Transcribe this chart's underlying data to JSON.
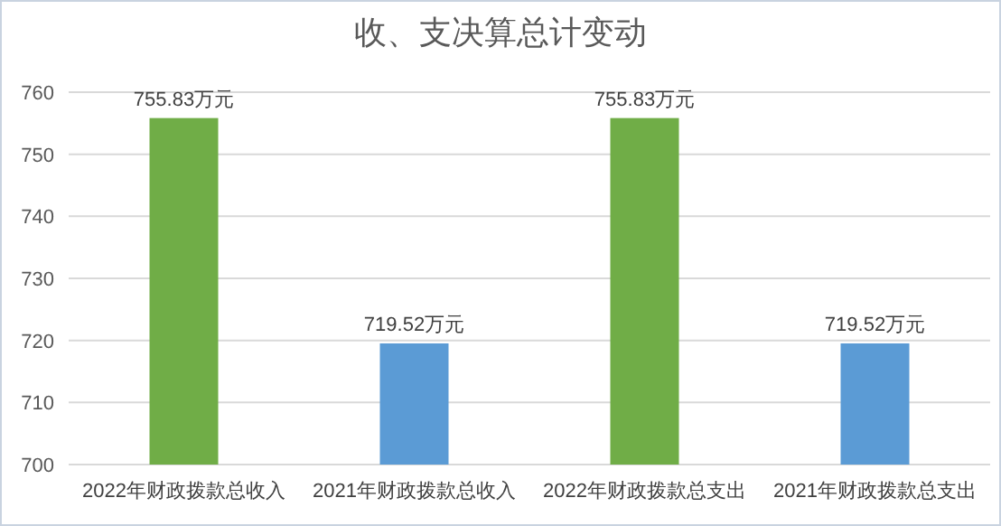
{
  "chart_data": {
    "type": "bar",
    "title": "收、支决算总计变动",
    "categories": [
      "2022年财政拨款总收入",
      "2021年财政拨款总收入",
      "2022年财政拨款总支出",
      "2021年财政拨款总支出"
    ],
    "values": [
      755.83,
      719.52,
      755.83,
      719.52
    ],
    "colors": [
      "#70ad47",
      "#5b9bd5",
      "#70ad47",
      "#5b9bd5"
    ],
    "value_labels": [
      "755.83万元",
      "719.52万元",
      "755.83万元",
      "719.52万元"
    ],
    "ylim": [
      700,
      760
    ],
    "yticks": [
      700,
      710,
      720,
      730,
      740,
      750,
      760
    ],
    "grid": "y"
  }
}
